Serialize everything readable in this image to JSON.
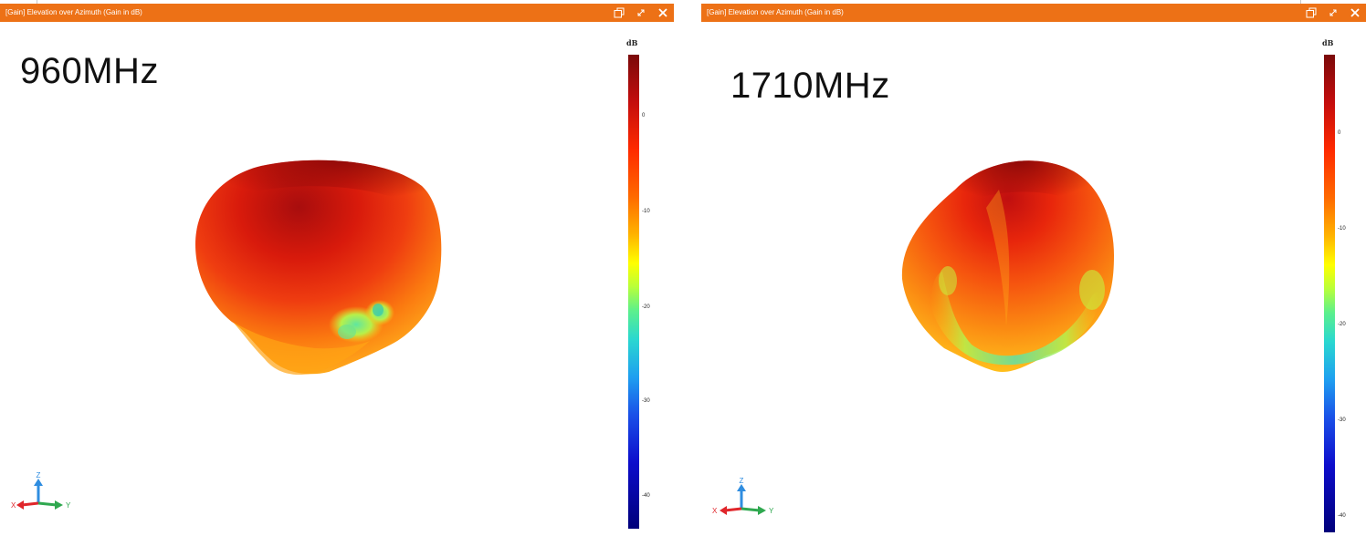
{
  "colors": {
    "titlebar": "#ed7116",
    "titlebar_text": "#ffffff",
    "x_axis": "#e0262b",
    "y_axis": "#2fa84f",
    "z_axis": "#2f8de0"
  },
  "panels": [
    {
      "title": "[Gain] Elevation over Azimuth (Gain in dB)",
      "frequency_label": "960MHz",
      "colorbar": {
        "unit": "dB",
        "ticks": [
          "0",
          "-10",
          "-20",
          "-30",
          "-40"
        ]
      },
      "axes": {
        "x": "X",
        "y": "Y",
        "z": "Z"
      },
      "icons": [
        "restore-window-icon",
        "expand-icon",
        "close-icon"
      ]
    },
    {
      "title": "[Gain] Elevation over Azimuth (Gain in dB)",
      "frequency_label": "1710MHz",
      "colorbar": {
        "unit": "dB",
        "ticks": [
          "0",
          "-10",
          "-20",
          "-30",
          "-40"
        ]
      },
      "axes": {
        "x": "X",
        "y": "Y",
        "z": "Z"
      },
      "icons": [
        "restore-window-icon",
        "expand-icon",
        "close-icon"
      ]
    }
  ]
}
